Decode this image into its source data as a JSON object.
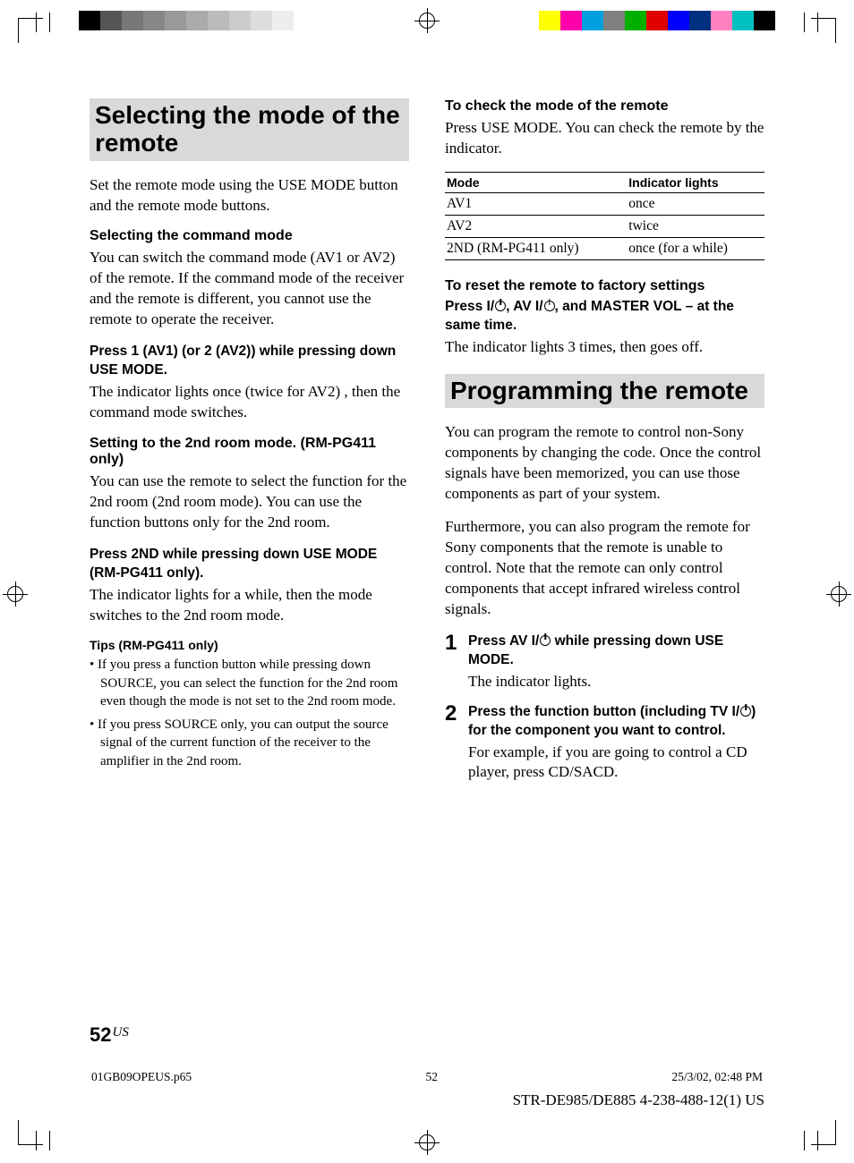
{
  "colorbars": {
    "left": [
      "#000000",
      "#555555",
      "#777777",
      "#888888",
      "#999999",
      "#aaaaaa",
      "#bbbbbb",
      "#cccccc",
      "#dddddd",
      "#eeeeee",
      "#ffffff"
    ],
    "right": [
      "#ffff00",
      "#ff00aa",
      "#00a0e0",
      "#808080",
      "#00b000",
      "#e00000",
      "#0000ff",
      "#003080",
      "#ff80c0",
      "#00c0c0",
      "#000000"
    ]
  },
  "left": {
    "title": "Selecting the mode of the remote",
    "intro": "Set the remote mode using the USE MODE button and the remote mode buttons.",
    "cmd_head": "Selecting the command mode",
    "cmd_body": "You can switch the command mode (AV1 or AV2) of the remote. If the command mode of the receiver and the remote is different, you cannot use the remote to operate the receiver.",
    "cmd_press_head": "Press 1 (AV1) (or 2 (AV2)) while pressing down USE MODE.",
    "cmd_press_body": "The indicator lights once (twice for AV2) , then the command mode switches.",
    "second_head": "Setting to the 2nd room mode. (RM-PG411 only)",
    "second_body": "You can use the remote to select the function for the 2nd room (2nd room mode). You can use the function buttons only for the 2nd room.",
    "second_press_head": "Press 2ND while pressing down USE MODE (RM-PG411 only).",
    "second_press_body": "The indicator lights for a while, then the mode switches to the 2nd room mode.",
    "tips_head": "Tips (RM-PG411 only)",
    "tips": [
      "If you press a function button while pressing down SOURCE, you can select the function for the 2nd room even though the mode is not set to the 2nd room mode.",
      "If you press SOURCE only, you can output the source signal of the current function of the receiver to the amplifier in the 2nd room."
    ]
  },
  "right": {
    "check_head": "To check the mode of the remote",
    "check_body": "Press USE MODE. You can check the remote by the indicator.",
    "table": {
      "headers": [
        "Mode",
        "Indicator lights"
      ],
      "rows": [
        [
          "AV1",
          "once"
        ],
        [
          "AV2",
          "twice"
        ],
        [
          "2ND (RM-PG411 only)",
          "once (for a while)"
        ]
      ]
    },
    "reset_head": "To reset the remote to factory settings",
    "reset_press_pre": "Press ",
    "reset_press_mid1": ", AV ",
    "reset_press_mid2": ", and MASTER VOL – at the same time.",
    "reset_body": "The indicator lights 3 times, then goes off.",
    "prog_title": "Programming the remote",
    "prog_p1": "You can program the remote to control non-Sony components by changing the code. Once the control signals have been memorized, you can use those components as part of your system.",
    "prog_p2": "Furthermore, you can also program the remote for Sony components that the remote is unable to control. Note that the remote can only control components that accept infrared wireless control signals.",
    "step1_num": "1",
    "step1_head_pre": "Press AV ",
    "step1_head_post": " while pressing down USE MODE.",
    "step1_body": "The indicator lights.",
    "step2_num": "2",
    "step2_head_pre": "Press the function button (including TV ",
    "step2_head_post": ") for the component you want to control.",
    "step2_body": "For example, if you are going to control a CD player, press CD/SACD."
  },
  "footer": {
    "page": "52",
    "page_suffix": "US",
    "file": "01GB09OPEUS.p65",
    "sheet": "52",
    "datetime": "25/3/02, 02:48 PM",
    "model": "STR-DE985/DE885    4-238-488-12(1) US"
  }
}
